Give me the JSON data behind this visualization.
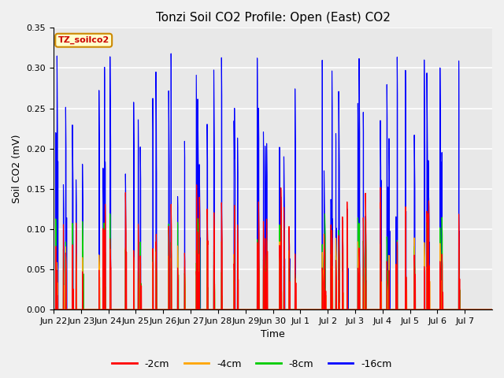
{
  "title": "Tonzi Soil CO2 Profile: Open (East) CO2",
  "ylabel": "Soil CO2 (mV)",
  "xlabel": "Time",
  "legend_label": "TZ_soilco2",
  "series_labels": [
    "-2cm",
    "-4cm",
    "-8cm",
    "-16cm"
  ],
  "series_colors": [
    "#ff0000",
    "#ffa500",
    "#00cc00",
    "#0000ff"
  ],
  "ylim": [
    0,
    0.35
  ],
  "plot_bg_color": "#e8e8e8",
  "fig_bg_color": "#f0f0f0",
  "grid_color": "#ffffff",
  "x_tick_labels": [
    "Jun 22",
    "Jun 23",
    "Jun 24",
    "Jun 25",
    "Jun 26",
    "Jun 27",
    "Jun 28",
    "Jun 29",
    "Jun 30",
    "Jul 1",
    "Jul 2",
    "Jul 3",
    "Jul 4",
    "Jul 5",
    "Jul 6",
    "Jul 7"
  ],
  "n_days": 16,
  "title_fontsize": 11,
  "axis_fontsize": 9,
  "tick_fontsize": 8,
  "legend_label_fontsize": 8,
  "legend_fontsize": 9
}
